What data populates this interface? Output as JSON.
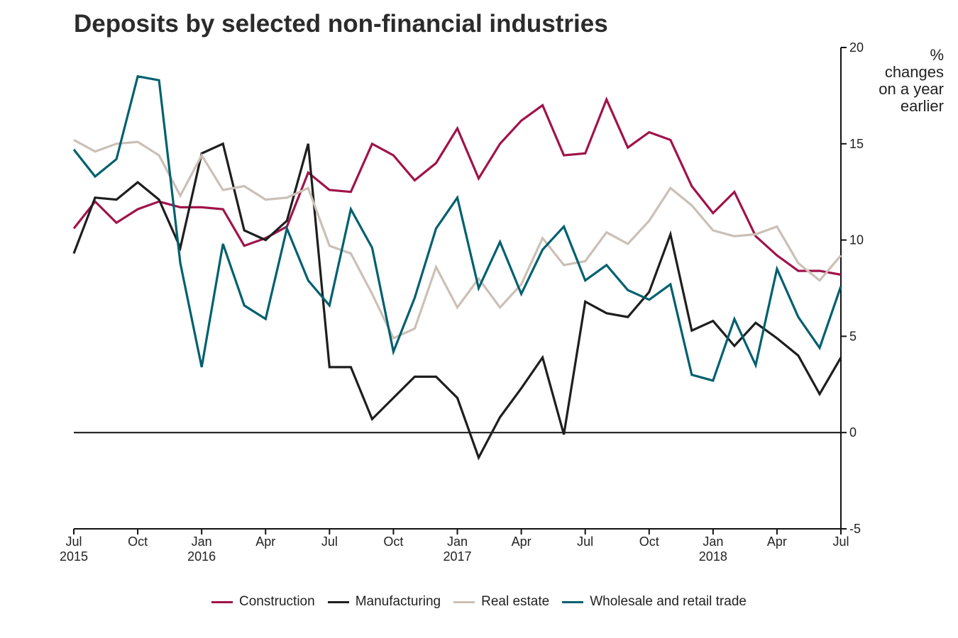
{
  "chart_data": {
    "type": "line",
    "title": "Deposits by selected non-financial industries",
    "unit_label": "%\nchanges\non a year\nearlier",
    "x": [
      "2015-07",
      "2015-08",
      "2015-09",
      "2015-10",
      "2015-11",
      "2015-12",
      "2016-01",
      "2016-02",
      "2016-03",
      "2016-04",
      "2016-05",
      "2016-06",
      "2016-07",
      "2016-08",
      "2016-09",
      "2016-10",
      "2016-11",
      "2016-12",
      "2017-01",
      "2017-02",
      "2017-03",
      "2017-04",
      "2017-05",
      "2017-06",
      "2017-07",
      "2017-08",
      "2017-09",
      "2017-10",
      "2017-11",
      "2017-12",
      "2018-01",
      "2018-02",
      "2018-03",
      "2018-04",
      "2018-05",
      "2018-06",
      "2018-07"
    ],
    "x_ticks": [
      {
        "month": "Jul",
        "year": "2015"
      },
      {
        "month": "Oct",
        "year": ""
      },
      {
        "month": "Jan",
        "year": "2016"
      },
      {
        "month": "Apr",
        "year": ""
      },
      {
        "month": "Jul",
        "year": ""
      },
      {
        "month": "Oct",
        "year": ""
      },
      {
        "month": "Jan",
        "year": "2017"
      },
      {
        "month": "Apr",
        "year": ""
      },
      {
        "month": "Jul",
        "year": ""
      },
      {
        "month": "Oct",
        "year": ""
      },
      {
        "month": "Jan",
        "year": "2018"
      },
      {
        "month": "Apr",
        "year": ""
      },
      {
        "month": "Jul",
        "year": ""
      }
    ],
    "y_ticks": [
      "20",
      "15",
      "10",
      "5",
      "0",
      "-5"
    ],
    "ylim": [
      -5,
      20
    ],
    "y_axis_side": "right",
    "grid": false,
    "legend_position": "bottom",
    "series": [
      {
        "name": "Construction",
        "color": "#a0134a",
        "values": [
          10.6,
          12.0,
          10.9,
          11.6,
          12.0,
          11.7,
          11.7,
          11.6,
          9.7,
          10.1,
          10.7,
          13.5,
          12.6,
          12.5,
          15.0,
          14.4,
          13.1,
          14.0,
          15.8,
          13.2,
          15.0,
          16.2,
          17.0,
          14.4,
          14.5,
          17.3,
          14.8,
          15.6,
          15.2,
          12.8,
          11.4,
          12.5,
          10.2,
          9.2,
          8.4,
          8.4,
          8.2
        ]
      },
      {
        "name": "Manufacturing",
        "color": "#1e1e1e",
        "values": [
          9.3,
          12.2,
          12.1,
          13.0,
          12.1,
          9.6,
          14.5,
          15.0,
          10.5,
          10.0,
          11.0,
          15.0,
          3.4,
          3.4,
          0.7,
          1.8,
          2.9,
          2.9,
          1.8,
          -1.3,
          0.8,
          2.3,
          3.9,
          -0.1,
          6.8,
          6.2,
          6.0,
          7.3,
          10.3,
          5.3,
          5.8,
          4.5,
          5.7,
          4.9,
          4.0,
          2.0,
          3.9
        ]
      },
      {
        "name": "Real estate",
        "color": "#cbc0b6",
        "values": [
          15.2,
          14.6,
          15.0,
          15.1,
          14.4,
          12.3,
          14.4,
          12.6,
          12.8,
          12.1,
          12.2,
          12.7,
          9.7,
          9.3,
          7.2,
          4.9,
          5.4,
          8.6,
          6.5,
          8.0,
          6.5,
          7.7,
          10.1,
          8.7,
          8.9,
          10.4,
          9.8,
          11.0,
          12.7,
          11.8,
          10.5,
          10.2,
          10.3,
          10.7,
          8.8,
          7.9,
          9.2
        ]
      },
      {
        "name": "Wholesale and retail trade",
        "color": "#00606e",
        "values": [
          14.7,
          13.3,
          14.2,
          18.5,
          18.3,
          8.8,
          3.4,
          9.8,
          6.6,
          5.9,
          10.6,
          7.9,
          6.6,
          11.6,
          9.6,
          4.2,
          7.0,
          10.6,
          12.2,
          7.5,
          9.9,
          7.2,
          9.5,
          10.7,
          7.9,
          8.7,
          7.4,
          6.9,
          7.7,
          3.0,
          2.7,
          5.9,
          3.5,
          8.5,
          6.0,
          4.4,
          7.6
        ]
      }
    ]
  }
}
